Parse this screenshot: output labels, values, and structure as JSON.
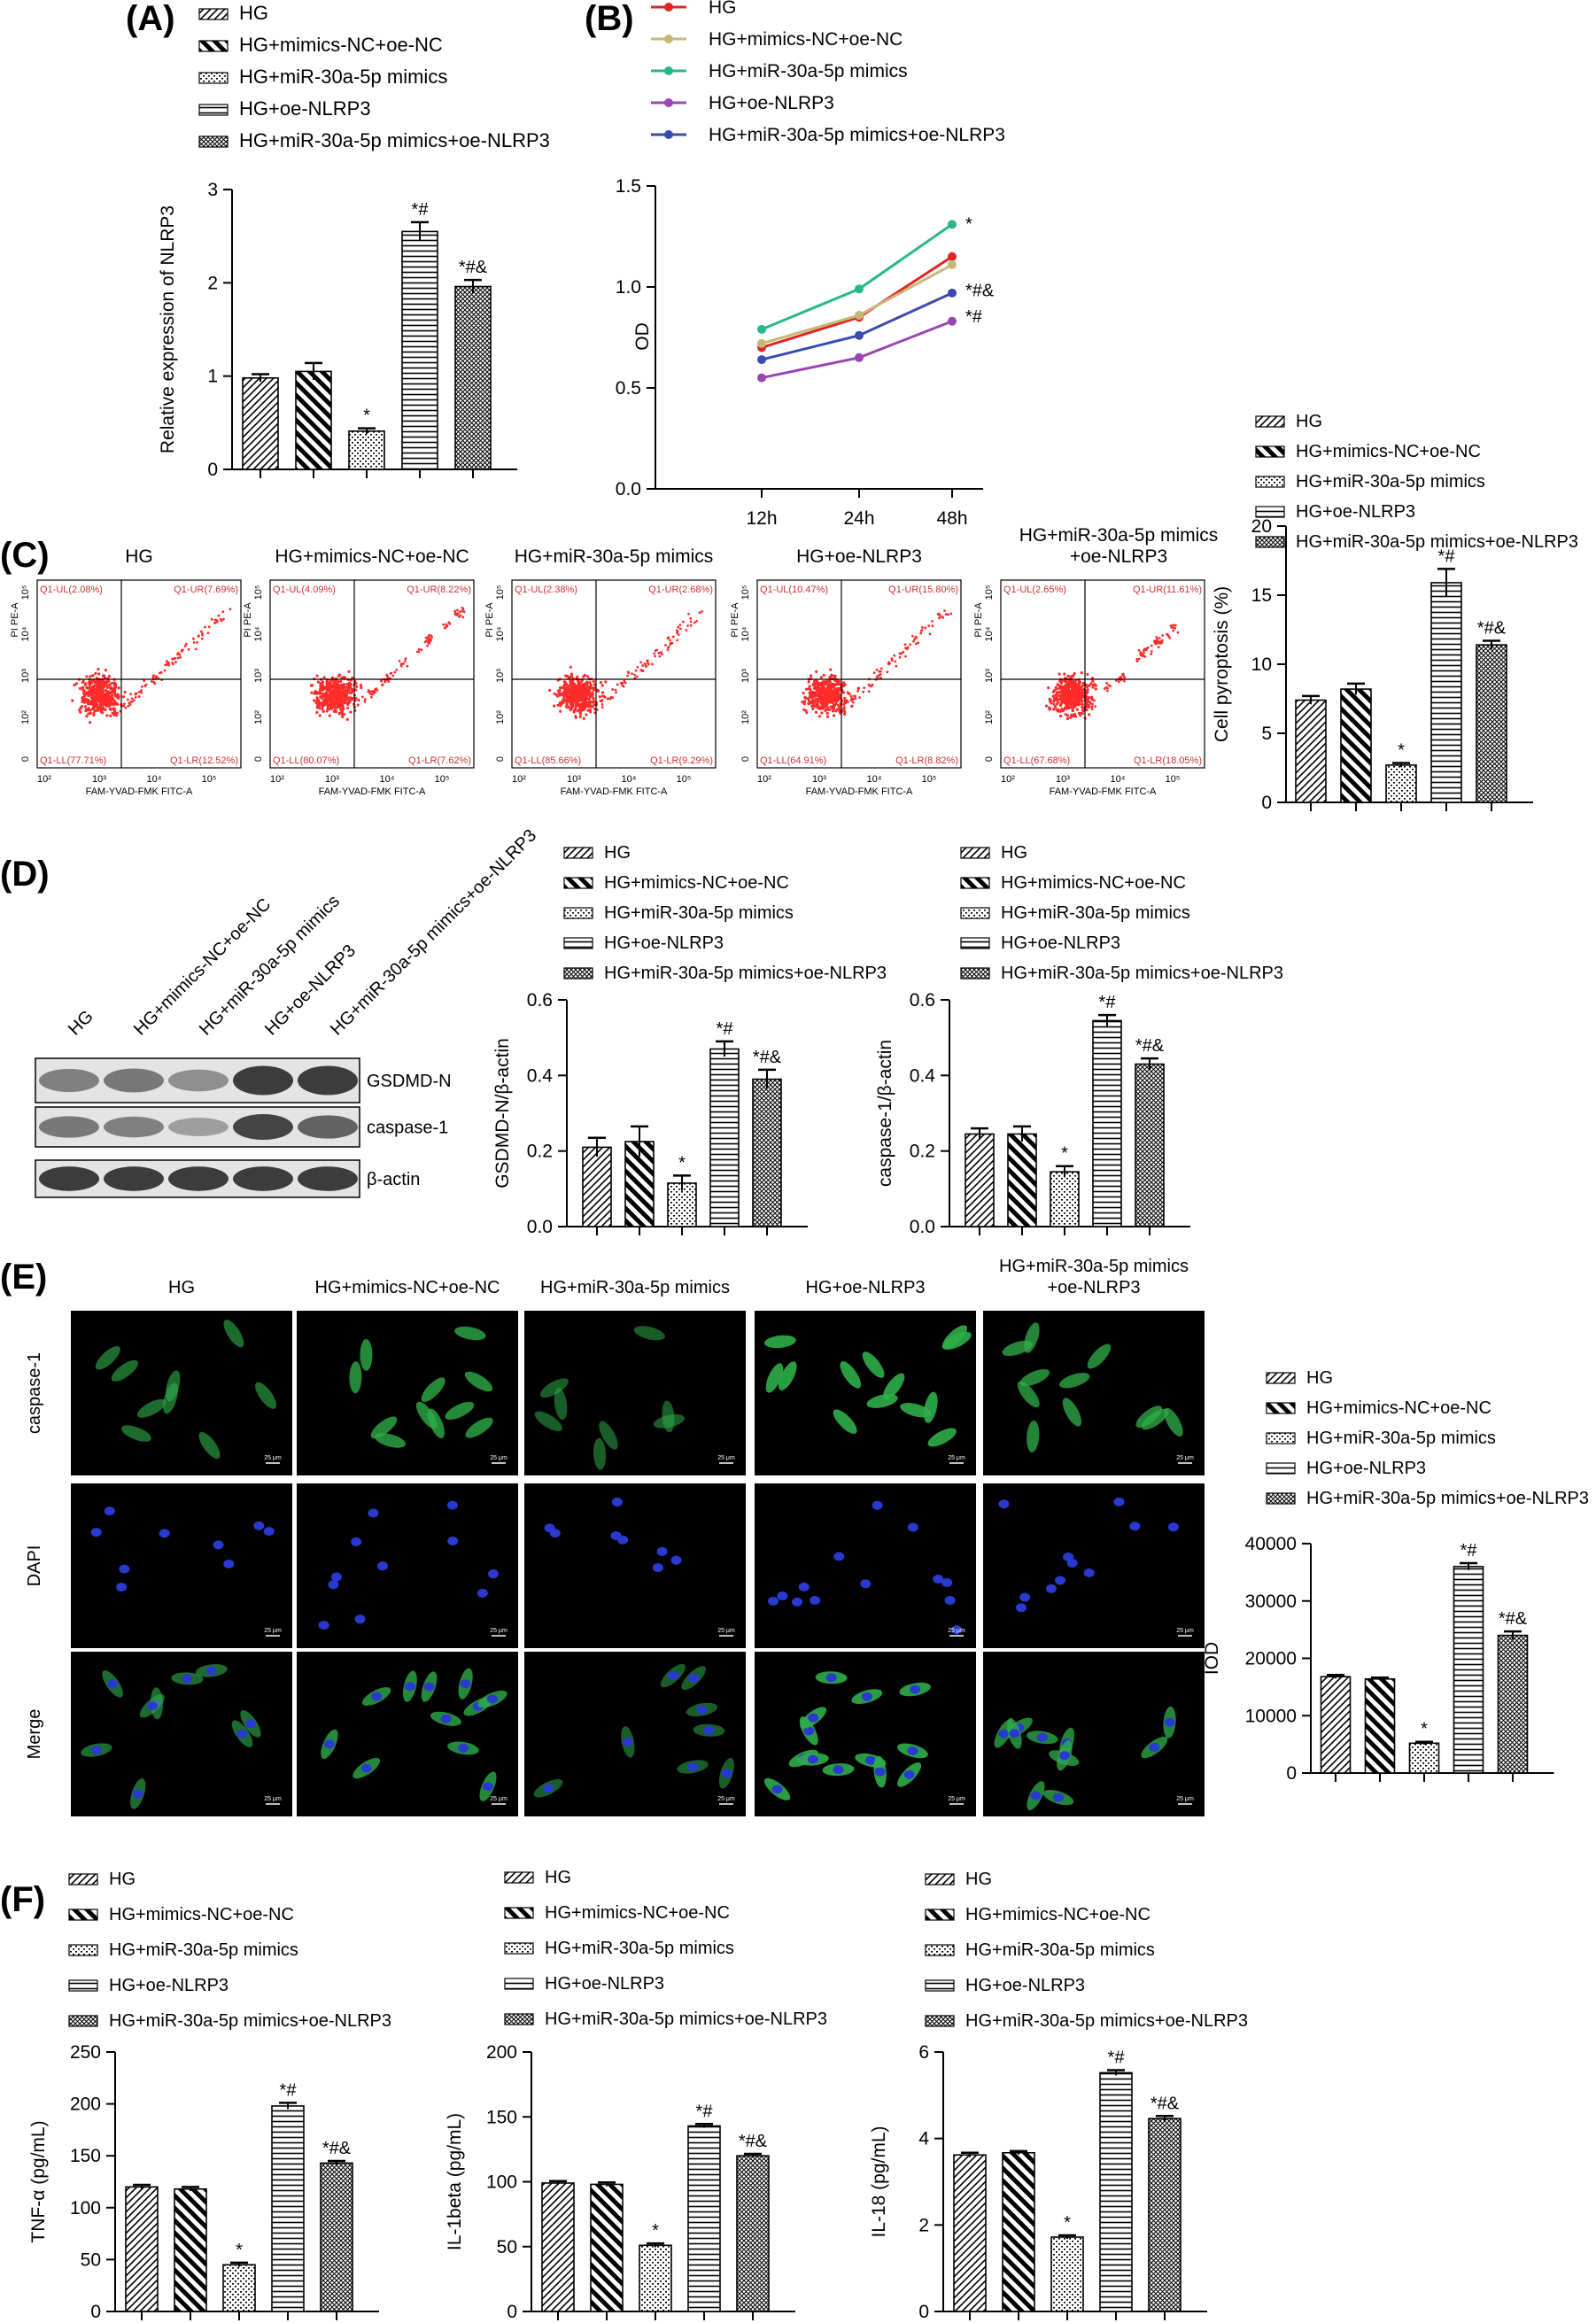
{
  "panels": {
    "A": "(A)",
    "B": "(B)",
    "C": "(C)",
    "D": "(D)",
    "E": "(E)",
    "F": "(F)"
  },
  "groups": [
    "HG",
    "HG+mimics-NC+oe-NC",
    "HG+miR-30a-5p mimics",
    "HG+oe-NLRP3",
    "HG+miR-30a-5p mimics+oe-NLRP3"
  ],
  "colors": {
    "bar_fill": "#ffffff",
    "bar_stroke": "#000000",
    "flow_dot": "#ff2a2a",
    "gate": "#d03030",
    "if_green": "#2fae4a",
    "if_blue": "#2a3ad0"
  },
  "chart_data": [
    {
      "id": "A",
      "type": "bar",
      "ylabel": "Relative expression of NLRP3",
      "ylim": [
        0,
        3
      ],
      "ticks": [
        0,
        1,
        2,
        3
      ],
      "values": [
        0.98,
        1.05,
        0.41,
        2.55,
        1.96
      ],
      "errors": [
        0.04,
        0.09,
        0.03,
        0.1,
        0.07
      ],
      "annotations": [
        "",
        "",
        "*",
        "*#",
        "*#&"
      ]
    },
    {
      "id": "B",
      "type": "line",
      "ylabel": "OD",
      "xlabel": "",
      "ylim": [
        0,
        1.5
      ],
      "ticks": [
        0.0,
        0.5,
        1.0,
        1.5
      ],
      "x": [
        "12h",
        "24h",
        "48h"
      ],
      "series": [
        {
          "name": "HG",
          "color": "#e02424",
          "values": [
            0.7,
            0.85,
            1.15
          ]
        },
        {
          "name": "HG+mimics-NC+oe-NC",
          "color": "#c8b878",
          "values": [
            0.72,
            0.86,
            1.11
          ]
        },
        {
          "name": "HG+miR-30a-5p mimics",
          "color": "#26b88a",
          "values": [
            0.79,
            0.99,
            1.31
          ]
        },
        {
          "name": "HG+oe-NLRP3",
          "color": "#9b45b5",
          "values": [
            0.55,
            0.65,
            0.83
          ]
        },
        {
          "name": "HG+miR-30a-5p mimics+oe-NLRP3",
          "color": "#3a4bb0",
          "values": [
            0.64,
            0.76,
            0.97
          ]
        }
      ],
      "annotations": [
        "*",
        "*#&",
        "*#"
      ]
    },
    {
      "id": "C",
      "type": "bar",
      "ylabel": "Cell pyroptosis (%)",
      "ylim": [
        0,
        20
      ],
      "ticks": [
        0,
        5,
        10,
        15,
        20
      ],
      "values": [
        7.4,
        8.2,
        2.7,
        15.9,
        11.4
      ],
      "errors": [
        0.3,
        0.4,
        0.15,
        1.0,
        0.3
      ],
      "annotations": [
        "",
        "",
        "*",
        "*#",
        "*#&"
      ]
    },
    {
      "id": "D1",
      "type": "bar",
      "ylabel": "GSDMD-N/β-actin",
      "ylim": [
        0,
        0.6
      ],
      "ticks": [
        0.0,
        0.2,
        0.4,
        0.6
      ],
      "values": [
        0.21,
        0.225,
        0.115,
        0.47,
        0.39
      ],
      "errors": [
        0.025,
        0.04,
        0.02,
        0.02,
        0.025
      ],
      "annotations": [
        "",
        "",
        "*",
        "*#",
        "*#&"
      ]
    },
    {
      "id": "D2",
      "type": "bar",
      "ylabel": "caspase-1/β-actin",
      "ylim": [
        0,
        0.6
      ],
      "ticks": [
        0.0,
        0.2,
        0.4,
        0.6
      ],
      "values": [
        0.245,
        0.245,
        0.145,
        0.545,
        0.43
      ],
      "errors": [
        0.015,
        0.02,
        0.015,
        0.015,
        0.015
      ],
      "annotations": [
        "",
        "",
        "*",
        "*#",
        "*#&"
      ]
    },
    {
      "id": "E",
      "type": "bar",
      "ylabel": "IOD",
      "ylim": [
        0,
        40000
      ],
      "ticks": [
        0,
        10000,
        20000,
        30000,
        40000
      ],
      "values": [
        16800,
        16400,
        5200,
        36000,
        24000
      ],
      "errors": [
        300,
        250,
        250,
        600,
        700
      ],
      "annotations": [
        "",
        "",
        "*",
        "*#",
        "*#&"
      ]
    },
    {
      "id": "F1",
      "type": "bar",
      "ylabel": "TNF-α (pg/mL)",
      "ylim": [
        0,
        250
      ],
      "ticks": [
        0,
        50,
        100,
        150,
        200,
        250
      ],
      "values": [
        120,
        118,
        45,
        198,
        143
      ],
      "errors": [
        2,
        2,
        2,
        3,
        2
      ],
      "annotations": [
        "",
        "",
        "*",
        "*#",
        "*#&"
      ]
    },
    {
      "id": "F2",
      "type": "bar",
      "ylabel": "IL-1beta (pg/mL)",
      "ylim": [
        0,
        200
      ],
      "ticks": [
        0,
        50,
        100,
        150,
        200
      ],
      "values": [
        99,
        98,
        51,
        143,
        120
      ],
      "errors": [
        1.5,
        1.5,
        1.5,
        1.5,
        1.5
      ],
      "annotations": [
        "",
        "",
        "*",
        "*#",
        "*#&"
      ]
    },
    {
      "id": "F3",
      "type": "bar",
      "ylabel": "IL-18 (pg/mL)",
      "ylim": [
        0,
        6
      ],
      "ticks": [
        0,
        2,
        4,
        6
      ],
      "values": [
        3.62,
        3.67,
        1.72,
        5.52,
        4.46
      ],
      "errors": [
        0.05,
        0.04,
        0.04,
        0.06,
        0.06
      ],
      "annotations": [
        "",
        "",
        "*",
        "*#",
        "*#&"
      ]
    }
  ],
  "flow": {
    "titles": [
      "HG",
      "HG+mimics-NC+oe-NC",
      "HG+miR-30a-5p mimics",
      "HG+oe-NLRP3",
      "HG+miR-30a-5p mimics\n+oe-NLRP3"
    ],
    "quadrants": [
      [
        "Q1-UL(2.08%)",
        "Q1-UR(7.69%)",
        "Q1-LL(77.71%)",
        "Q1-LR(12.52%)"
      ],
      [
        "Q1-UL(4.09%)",
        "Q1-UR(8.22%)",
        "Q1-LL(80.07%)",
        "Q1-LR(7.62%)"
      ],
      [
        "Q1-UL(2.38%)",
        "Q1-UR(2.68%)",
        "Q1-LL(85.66%)",
        "Q1-LR(9.29%)"
      ],
      [
        "Q1-UL(10.47%)",
        "Q1-UR(15.80%)",
        "Q1-LL(64.91%)",
        "Q1-LR(8.82%)"
      ],
      [
        "Q1-UL(2.65%)",
        "Q1-UR(11.61%)",
        "Q1-LL(67.68%)",
        "Q1-LR(18.05%)"
      ]
    ],
    "xlabel": "FAM-YVAD-FMK FITC-A",
    "ylabel": "PI PE-A",
    "xticks": [
      "10²",
      "10³",
      "10⁴",
      "10⁵"
    ],
    "yticks": [
      "0",
      "10²",
      "10³",
      "10⁴",
      "10⁵"
    ]
  },
  "western": {
    "bands": [
      "GSDMD-N",
      "caspase-1",
      "β-actin"
    ]
  },
  "if": {
    "titles": [
      "HG",
      "HG+mimics-NC+oe-NC",
      "HG+miR-30a-5p mimics",
      "HG+oe-NLRP3",
      "HG+miR-30a-5p mimics\n+oe-NLRP3"
    ],
    "rows": [
      "caspase-1",
      "DAPI",
      "Merge"
    ],
    "scale": "25 μm"
  }
}
